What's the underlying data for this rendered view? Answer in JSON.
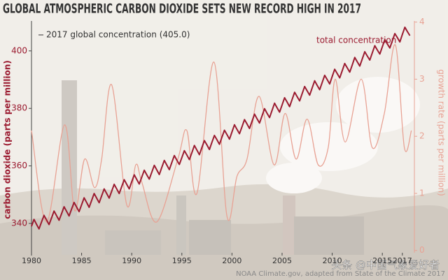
{
  "chart_data": {
    "type": "line",
    "title": "GLOBAL ATMOSPHERIC CARBON DIOXIDE SETS NEW RECORD HIGH IN 2017",
    "y_label": "carbon dioxide (parts per million)",
    "y2_label": "growth rate (parts per million)",
    "annotations": [
      "2017 global concentration (405.0)"
    ],
    "source": "NOAA Climate.gov, adapted from State of the Climate 2017",
    "watermark": "头条 @中国气象爱好者",
    "xlim": [
      1980,
      2018.2
    ],
    "xticks": [
      1980,
      1985,
      1990,
      1995,
      2000,
      2005,
      2010,
      2015,
      2017
    ],
    "ylim": [
      329.8,
      410.4
    ],
    "yticks": [
      340,
      360,
      380,
      400
    ],
    "y2lim": [
      -0.04,
      4.02
    ],
    "y2ticks": [
      0,
      1,
      2,
      3,
      4
    ],
    "series": [
      {
        "name": "total concentration",
        "color": "#9b1b30",
        "x": [
          1980,
          1980.25,
          1980.5,
          1980.75,
          1981,
          1981.25,
          1981.5,
          1981.75,
          1982,
          1982.25,
          1982.5,
          1982.75,
          1983,
          1983.25,
          1983.5,
          1983.75,
          1984,
          1984.25,
          1984.5,
          1984.75,
          1985,
          1985.25,
          1985.5,
          1985.75,
          1986,
          1986.25,
          1986.5,
          1986.75,
          1987,
          1987.25,
          1987.5,
          1987.75,
          1988,
          1988.25,
          1988.5,
          1988.75,
          1989,
          1989.25,
          1989.5,
          1989.75,
          1990,
          1990.25,
          1990.5,
          1990.75,
          1991,
          1991.25,
          1991.5,
          1991.75,
          1992,
          1992.25,
          1992.5,
          1992.75,
          1993,
          1993.25,
          1993.5,
          1993.75,
          1994,
          1994.25,
          1994.5,
          1994.75,
          1995,
          1995.25,
          1995.5,
          1995.75,
          1996,
          1996.25,
          1996.5,
          1996.75,
          1997,
          1997.25,
          1997.5,
          1997.75,
          1998,
          1998.25,
          1998.5,
          1998.75,
          1999,
          1999.25,
          1999.5,
          1999.75,
          2000,
          2000.25,
          2000.5,
          2000.75,
          2001,
          2001.25,
          2001.5,
          2001.75,
          2002,
          2002.25,
          2002.5,
          2002.75,
          2003,
          2003.25,
          2003.5,
          2003.75,
          2004,
          2004.25,
          2004.5,
          2004.75,
          2005,
          2005.25,
          2005.5,
          2005.75,
          2006,
          2006.25,
          2006.5,
          2006.75,
          2007,
          2007.25,
          2007.5,
          2007.75,
          2008,
          2008.25,
          2008.5,
          2008.75,
          2009,
          2009.25,
          2009.5,
          2009.75,
          2010,
          2010.25,
          2010.5,
          2010.75,
          2011,
          2011.25,
          2011.5,
          2011.75,
          2012,
          2012.25,
          2012.5,
          2012.75,
          2013,
          2013.25,
          2013.5,
          2013.75,
          2014,
          2014.25,
          2014.5,
          2014.75,
          2015,
          2015.25,
          2015.5,
          2015.75,
          2016,
          2016.25,
          2016.5,
          2016.75,
          2017,
          2017.25,
          2017.5,
          2017.75
        ],
        "values": [
          339.0,
          341.4,
          339.7,
          338.1,
          340.5,
          342.8,
          341.2,
          339.6,
          341.9,
          344.3,
          342.7,
          341.1,
          343.4,
          345.8,
          344.2,
          342.6,
          345.0,
          347.3,
          345.7,
          344.1,
          346.5,
          348.9,
          347.3,
          345.6,
          348.0,
          350.4,
          348.8,
          347.2,
          349.6,
          352.0,
          350.4,
          348.8,
          351.2,
          353.6,
          352.0,
          350.4,
          352.8,
          355.2,
          353.6,
          352.0,
          354.5,
          356.9,
          355.3,
          353.7,
          356.1,
          358.5,
          356.9,
          355.4,
          357.8,
          360.2,
          358.6,
          357.0,
          359.5,
          361.9,
          360.3,
          358.7,
          361.2,
          363.6,
          362.0,
          360.5,
          362.9,
          365.3,
          363.8,
          362.2,
          364.6,
          367.1,
          365.5,
          363.9,
          366.4,
          368.8,
          367.3,
          365.7,
          368.2,
          370.6,
          369.1,
          367.5,
          370.0,
          372.4,
          370.9,
          369.3,
          371.8,
          374.3,
          372.7,
          371.2,
          373.6,
          376.1,
          374.6,
          373.0,
          375.5,
          378.0,
          376.4,
          374.9,
          377.4,
          379.9,
          378.3,
          376.8,
          379.3,
          381.8,
          380.2,
          378.7,
          381.2,
          383.7,
          382.2,
          380.6,
          383.1,
          385.6,
          384.1,
          382.6,
          385.1,
          387.6,
          386.1,
          384.6,
          387.1,
          389.6,
          388.0,
          386.5,
          389.0,
          391.5,
          390.0,
          388.5,
          391.1,
          393.6,
          392.1,
          390.6,
          393.1,
          395.6,
          394.1,
          392.6,
          395.1,
          397.7,
          396.2,
          394.7,
          397.2,
          399.7,
          398.2,
          396.8,
          399.3,
          401.8,
          400.3,
          398.9,
          401.4,
          403.9,
          402.4,
          401.0,
          403.5,
          406.0,
          404.6,
          403.1,
          405.7,
          408.2,
          406.7,
          405.3
        ]
      },
      {
        "color": "#e8a294",
        "axis": "y2",
        "x": [
          1980,
          1981.5,
          1983.3,
          1984.3,
          1985.3,
          1986.3,
          1987,
          1988,
          1989.5,
          1990.4,
          1991,
          1992.5,
          1994.6,
          1995.5,
          1996.5,
          1998.2,
          1999.5,
          2000.5,
          2001.5,
          2002.7,
          2004.2,
          2005.3,
          2006.4,
          2007.5,
          2008.6,
          2009.6,
          2010.3,
          2011.3,
          2012.9,
          2014,
          2015.2,
          2016.3,
          2017.2,
          2017.9
        ],
        "values": [
          2.1,
          0.5,
          2.2,
          0.7,
          1.6,
          1.1,
          1.6,
          2.9,
          0.8,
          1.5,
          1.2,
          0.5,
          1.6,
          2.1,
          1.0,
          3.3,
          0.6,
          1.3,
          1.6,
          2.7,
          1.5,
          2.4,
          1.6,
          2.3,
          1.5,
          1.8,
          3.0,
          1.9,
          3.0,
          1.8,
          2.4,
          3.6,
          1.8,
          2.1
        ]
      }
    ]
  }
}
